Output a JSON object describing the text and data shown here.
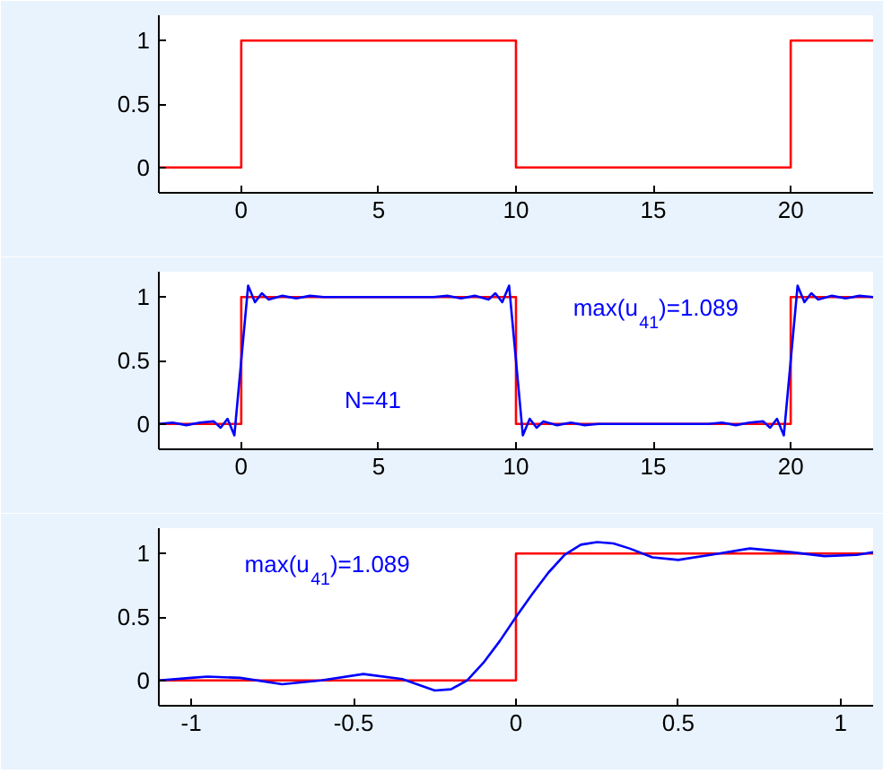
{
  "chart_data": [
    {
      "type": "line",
      "xlim": [
        -3,
        23
      ],
      "ylim": [
        -0.2,
        1.2
      ],
      "xticks": [
        0,
        5,
        10,
        15,
        20
      ],
      "yticks": [
        0,
        0.5,
        1
      ],
      "grid": false,
      "series": [
        {
          "color": "#ff0000",
          "x": [
            -3,
            0,
            0,
            10,
            10,
            20,
            20,
            23
          ],
          "values": [
            0,
            0,
            1,
            1,
            0,
            0,
            1,
            1
          ]
        }
      ]
    },
    {
      "type": "line",
      "xlim": [
        -3,
        23
      ],
      "ylim": [
        -0.2,
        1.2
      ],
      "xticks": [
        0,
        5,
        10,
        15,
        20
      ],
      "yticks": [
        0,
        0.5,
        1
      ],
      "grid": false,
      "annotations": [
        "max(u$_{41}$)=1.089",
        "N=41"
      ],
      "series": [
        {
          "color": "#ff0000",
          "x": [
            -3,
            0,
            0,
            10,
            10,
            20,
            20,
            23
          ],
          "values": [
            0,
            0,
            1,
            1,
            0,
            0,
            1,
            1
          ]
        },
        {
          "color": "#0000ff",
          "x": [
            -3,
            -2.5,
            -2,
            -1.5,
            -1,
            -0.75,
            -0.5,
            -0.25,
            0,
            0.25,
            0.5,
            0.75,
            1,
            1.5,
            2,
            2.5,
            3,
            4,
            5,
            6,
            7,
            7.5,
            8,
            8.5,
            9,
            9.25,
            9.5,
            9.75,
            10,
            10.25,
            10.5,
            10.75,
            11,
            11.5,
            12,
            12.5,
            13,
            14,
            15,
            16,
            17,
            17.5,
            18,
            18.5,
            19,
            19.25,
            19.5,
            19.75,
            20,
            20.25,
            20.5,
            20.75,
            21,
            21.5,
            22,
            22.5,
            23
          ],
          "values": [
            0,
            0.01,
            -0.01,
            0.01,
            0.02,
            -0.03,
            0.04,
            -0.09,
            0.5,
            1.09,
            0.96,
            1.03,
            0.98,
            1.01,
            0.99,
            1.01,
            1,
            1,
            1,
            1,
            1,
            1.01,
            0.99,
            1.01,
            0.98,
            1.03,
            0.96,
            1.09,
            0.5,
            -0.09,
            0.04,
            -0.03,
            0.02,
            -0.01,
            0.01,
            -0.01,
            0,
            0,
            0,
            0,
            0,
            0.01,
            -0.01,
            0.01,
            0.02,
            -0.03,
            0.04,
            -0.09,
            0.5,
            1.09,
            0.96,
            1.03,
            0.98,
            1.01,
            0.99,
            1.01,
            1
          ]
        }
      ]
    },
    {
      "type": "line",
      "xlim": [
        -1.1,
        1.1
      ],
      "ylim": [
        -0.2,
        1.2
      ],
      "xticks": [
        -1,
        -0.5,
        0,
        0.5,
        1
      ],
      "yticks": [
        0,
        0.5,
        1
      ],
      "grid": false,
      "annotations": [
        "max(u$_{41}$)=1.089"
      ],
      "series": [
        {
          "color": "#ff0000",
          "x": [
            -1.1,
            0,
            0,
            1.1
          ],
          "values": [
            0,
            0,
            1,
            1
          ]
        },
        {
          "color": "#0000ff",
          "x": [
            -1.1,
            -1.0,
            -0.95,
            -0.85,
            -0.72,
            -0.6,
            -0.47,
            -0.35,
            -0.25,
            -0.2,
            -0.15,
            -0.1,
            -0.05,
            0,
            0.05,
            0.1,
            0.15,
            0.2,
            0.25,
            0.3,
            0.35,
            0.42,
            0.5,
            0.6,
            0.72,
            0.85,
            0.95,
            1.05,
            1.1
          ],
          "values": [
            0,
            0.02,
            0.03,
            0.02,
            -0.03,
            0.0,
            0.05,
            0.01,
            -0.08,
            -0.07,
            0.0,
            0.14,
            0.31,
            0.5,
            0.68,
            0.85,
            0.99,
            1.07,
            1.09,
            1.08,
            1.04,
            0.97,
            0.95,
            0.99,
            1.04,
            1.01,
            0.98,
            0.99,
            1.01
          ]
        }
      ]
    }
  ]
}
